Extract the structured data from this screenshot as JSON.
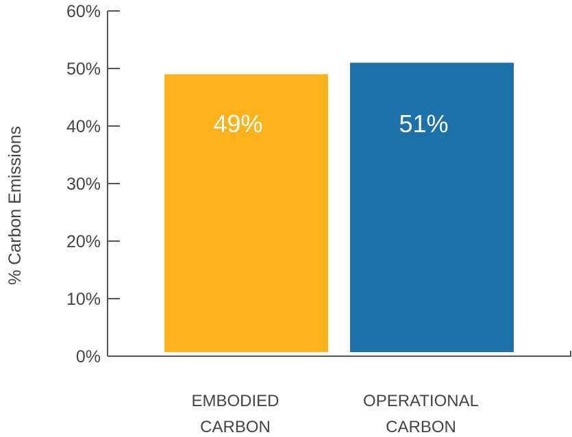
{
  "chart_data": {
    "type": "bar",
    "title": "",
    "xlabel": "",
    "ylabel": "% Carbon Emissions",
    "ylim": [
      0,
      60
    ],
    "yticks": [
      "0%",
      "10%",
      "20%",
      "30%",
      "40%",
      "50%",
      "60%"
    ],
    "ytick_values": [
      0,
      10,
      20,
      30,
      40,
      50,
      60
    ],
    "grid": false,
    "legend": "none",
    "categories": [
      [
        "EMBODIED",
        "CARBON"
      ],
      [
        "OPERATIONAL",
        "CARBON"
      ]
    ],
    "values": [
      49,
      51
    ],
    "data_labels": [
      "49%",
      "51%"
    ],
    "colors": [
      "#FDB11B",
      "#1C72A8"
    ],
    "axis_color": "#555555"
  }
}
